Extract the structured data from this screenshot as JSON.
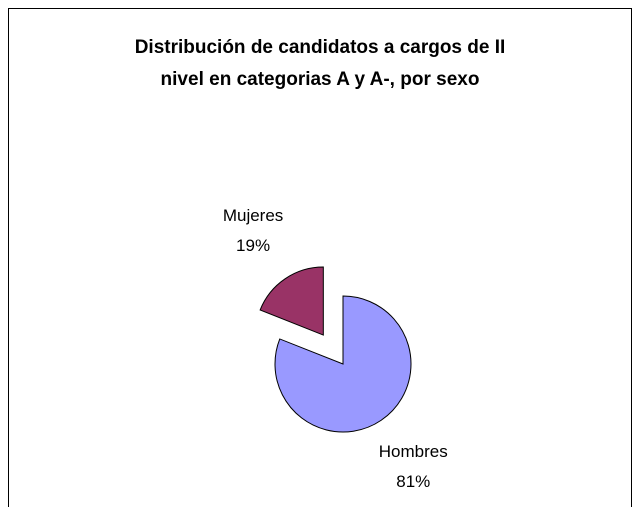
{
  "chart_data": {
    "type": "pie",
    "title_lines": [
      "Distribución de candidatos a cargos de II",
      "nivel en categorias A y A-, por sexo"
    ],
    "categories": [
      "Hombres",
      "Mujeres"
    ],
    "values": [
      81,
      19
    ],
    "value_labels": [
      "81%",
      "19%"
    ],
    "colors": [
      "#9999ff",
      "#993366"
    ],
    "exploded": [
      false,
      true
    ]
  }
}
